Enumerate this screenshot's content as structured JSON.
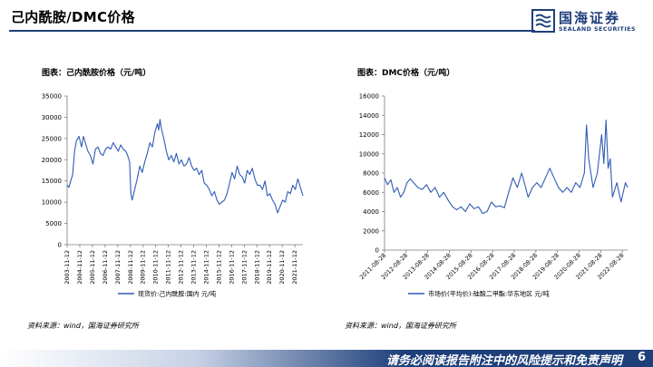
{
  "page": {
    "title": "己内酰胺/DMC价格",
    "logo_cn": "国海证券",
    "logo_en": "SEALAND SECURITIES",
    "footer": "请务必阅读报告附注中的风险提示和免责声明",
    "page_number": "6"
  },
  "colors": {
    "brand": "#1e3f7a",
    "series": "#2f5bb4",
    "axis": "#7a7a7a"
  },
  "chart_data": [
    {
      "type": "line",
      "caption": "图表：己内酰胺价格（元/吨）",
      "source": "资料来源：wind，国海证券研究所",
      "legend_position": "bottom",
      "grid": false,
      "x_ticks": [
        "2003-11-12",
        "2004-11-12",
        "2005-11-12",
        "2006-11-12",
        "2007-11-12",
        "2008-11-12",
        "2009-11-12",
        "2010-11-12",
        "2011-11-12",
        "2012-11-12",
        "2013-11-12",
        "2014-11-12",
        "2015-11-12",
        "2016-11-12",
        "2017-11-12",
        "2018-11-12",
        "2019-11-12",
        "2020-11-12",
        "2021-11-12"
      ],
      "xlim": [
        2003.86,
        2022.5
      ],
      "ylim": [
        0,
        35000
      ],
      "y_ticks": [
        0,
        5000,
        10000,
        15000,
        20000,
        25000,
        30000,
        35000
      ],
      "series": [
        {
          "name": "现货价:己内酰胺:国内 元/吨",
          "x": [
            2003.86,
            2004.0,
            2004.15,
            2004.3,
            2004.45,
            2004.6,
            2004.8,
            2005.0,
            2005.15,
            2005.3,
            2005.5,
            2005.7,
            2005.9,
            2006.1,
            2006.3,
            2006.5,
            2006.7,
            2006.9,
            2007.1,
            2007.3,
            2007.5,
            2007.7,
            2007.9,
            2008.1,
            2008.3,
            2008.5,
            2008.65,
            2008.8,
            2008.9,
            2009.0,
            2009.2,
            2009.4,
            2009.6,
            2009.8,
            2010.0,
            2010.2,
            2010.4,
            2010.6,
            2010.8,
            2011.0,
            2011.1,
            2011.2,
            2011.3,
            2011.5,
            2011.7,
            2011.9,
            2012.1,
            2012.3,
            2012.5,
            2012.7,
            2012.9,
            2013.1,
            2013.3,
            2013.5,
            2013.7,
            2013.9,
            2014.1,
            2014.3,
            2014.5,
            2014.7,
            2014.9,
            2015.1,
            2015.3,
            2015.5,
            2015.7,
            2015.9,
            2016.1,
            2016.3,
            2016.5,
            2016.7,
            2016.9,
            2017.1,
            2017.3,
            2017.5,
            2017.7,
            2017.9,
            2018.1,
            2018.3,
            2018.5,
            2018.7,
            2018.9,
            2019.1,
            2019.3,
            2019.5,
            2019.7,
            2019.9,
            2020.1,
            2020.3,
            2020.5,
            2020.7,
            2020.9,
            2021.1,
            2021.3,
            2021.5,
            2021.7,
            2021.9,
            2022.1,
            2022.3,
            2022.5
          ],
          "y": [
            14000,
            13500,
            15000,
            16500,
            22000,
            24500,
            25500,
            23000,
            25500,
            24000,
            22000,
            21000,
            19000,
            22500,
            23000,
            21500,
            21000,
            22500,
            23000,
            22500,
            24000,
            23000,
            22000,
            23500,
            22500,
            22000,
            21000,
            19500,
            12000,
            10500,
            13000,
            15500,
            18500,
            17000,
            19500,
            21500,
            24000,
            23000,
            26500,
            28500,
            27000,
            29500,
            27500,
            25000,
            22000,
            20000,
            21000,
            19500,
            21500,
            19000,
            20000,
            18500,
            19000,
            20500,
            18500,
            17500,
            18000,
            16500,
            17500,
            14500,
            14000,
            13000,
            11500,
            12500,
            10500,
            9500,
            10000,
            10500,
            12000,
            14500,
            17000,
            15500,
            18500,
            16500,
            16000,
            14500,
            17500,
            16500,
            18000,
            15500,
            14000,
            14000,
            13000,
            15000,
            11500,
            12000,
            10500,
            9500,
            7500,
            9000,
            10500,
            10000,
            12500,
            12000,
            14000,
            13000,
            15500,
            13500,
            11500
          ]
        }
      ]
    },
    {
      "type": "line",
      "caption": "图表：DMC价格（元/吨）",
      "source": "资料来源：wind，国海证券研究所",
      "legend_position": "bottom",
      "grid": false,
      "x_ticks": [
        "2011-08-28",
        "2012-08-28",
        "2013-08-28",
        "2014-08-28",
        "2015-08-28",
        "2016-08-28",
        "2017-08-28",
        "2018-08-28",
        "2019-08-28",
        "2020-08-28",
        "2021-08-28",
        "2022-08-28"
      ],
      "xlim": [
        2011.66,
        2022.9
      ],
      "ylim": [
        0,
        16000
      ],
      "y_ticks": [
        0,
        2000,
        4000,
        6000,
        8000,
        10000,
        12000,
        14000,
        16000
      ],
      "series": [
        {
          "name": "市场价(平均价):硅酸二甲酯:华东地区 元/吨",
          "x": [
            2011.66,
            2011.8,
            2011.95,
            2012.1,
            2012.25,
            2012.4,
            2012.55,
            2012.7,
            2012.85,
            2013.0,
            2013.2,
            2013.4,
            2013.6,
            2013.8,
            2014.0,
            2014.2,
            2014.4,
            2014.6,
            2014.8,
            2015.0,
            2015.2,
            2015.4,
            2015.6,
            2015.8,
            2016.0,
            2016.2,
            2016.4,
            2016.6,
            2016.8,
            2017.0,
            2017.2,
            2017.4,
            2017.6,
            2017.8,
            2018.0,
            2018.1,
            2018.3,
            2018.5,
            2018.7,
            2018.9,
            2019.1,
            2019.3,
            2019.5,
            2019.7,
            2019.9,
            2020.1,
            2020.3,
            2020.5,
            2020.7,
            2020.9,
            2021.0,
            2021.1,
            2021.3,
            2021.5,
            2021.7,
            2021.8,
            2021.9,
            2022.0,
            2022.1,
            2022.2,
            2022.4,
            2022.6,
            2022.8,
            2022.9
          ],
          "y": [
            7500,
            6800,
            7300,
            6000,
            6500,
            5500,
            6000,
            7000,
            7400,
            7000,
            6500,
            6300,
            6800,
            6000,
            6500,
            5500,
            6000,
            5200,
            4500,
            4200,
            4500,
            4000,
            4800,
            4300,
            4500,
            3800,
            4000,
            5000,
            4500,
            4600,
            4400,
            6000,
            7500,
            6500,
            8000,
            7200,
            5500,
            6500,
            7000,
            6500,
            7500,
            8500,
            7500,
            6500,
            6000,
            6500,
            6000,
            7000,
            6500,
            8000,
            13000,
            9500,
            6500,
            8000,
            12000,
            9000,
            13500,
            8500,
            9500,
            5500,
            7000,
            5000,
            7000,
            6500
          ]
        }
      ]
    }
  ]
}
